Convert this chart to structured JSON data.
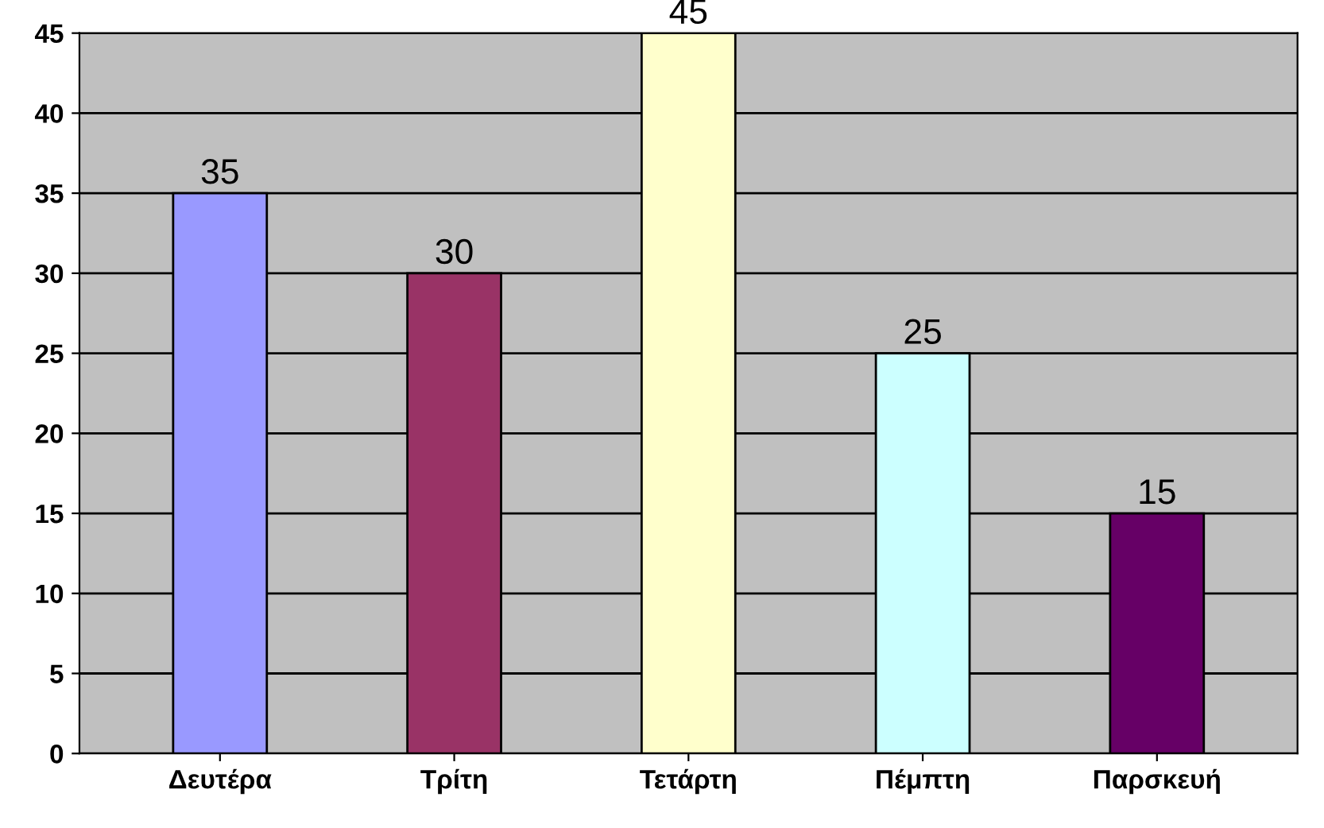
{
  "chart_data": {
    "type": "bar",
    "categories": [
      "Δευτέρα",
      "Τρίτη",
      "Τετάρτη",
      "Πέμπτη",
      "Παρσκευή"
    ],
    "values": [
      35,
      30,
      45,
      25,
      15
    ],
    "colors": [
      "#9999ff",
      "#993366",
      "#ffffcc",
      "#ccffff",
      "#660066"
    ],
    "ylim": [
      0,
      45
    ],
    "yticks": [
      0,
      5,
      10,
      15,
      20,
      25,
      30,
      35,
      40,
      45
    ],
    "grid": "y",
    "data_labels": true,
    "legend": false
  }
}
